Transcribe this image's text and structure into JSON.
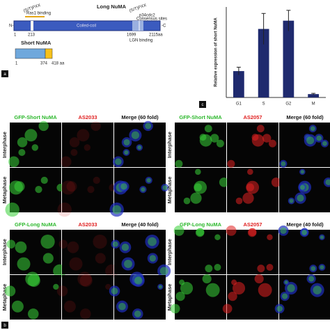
{
  "panel_a": {
    "label": "a",
    "long_title": "Long NuMA",
    "n_term": "N-",
    "c_term": "-C",
    "motif_left": "(S/T)PXX",
    "motif_right": "(S/T)PXX",
    "ras_binding": "Ras1 binding",
    "coiled_coil": "Coiled-coil",
    "lgn_binding": "LGN binding",
    "consensus": "p34cdc2",
    "consensus_sub": "Consensus sites",
    "long_positions": [
      "1",
      "213",
      "1699",
      "2115aa"
    ],
    "short_title": "Short NuMA",
    "short_positions": [
      "1",
      "374",
      "418 aa"
    ]
  },
  "chart_data": {
    "type": "bar",
    "panel_label": "c",
    "y_label": "Relative expression of short NuMA",
    "categories": [
      "G1",
      "S",
      "G2",
      "M"
    ],
    "values": [
      1.02,
      2.65,
      2.97,
      0.13
    ],
    "errors": [
      0.15,
      0.6,
      0.4,
      0.03
    ],
    "color": "#1f2a6e",
    "ylim": [
      0,
      3.5
    ]
  },
  "panel_b": {
    "label": "b",
    "blocks": [
      {
        "columns": [
          "GFP-Short NuMA",
          "AS2033",
          "Merge (60 fold)"
        ],
        "rows": [
          "Interphase",
          "Metaphase"
        ]
      },
      {
        "columns": [
          "GFP-Short NuMA",
          "AS2057",
          "Merge (60 fold)"
        ],
        "rows": [
          "Interphase",
          "Metaphase"
        ]
      },
      {
        "columns": [
          "GFP-Long NuMA",
          "AS2033",
          "Merge (40 fold)"
        ],
        "rows": [
          "Interphase",
          "Metaphase"
        ]
      },
      {
        "columns": [
          "GFP-Long NuMA",
          "AS2057",
          "Merge (40 fold)"
        ],
        "rows": [
          "Interphase",
          "Metaphase"
        ]
      }
    ]
  }
}
